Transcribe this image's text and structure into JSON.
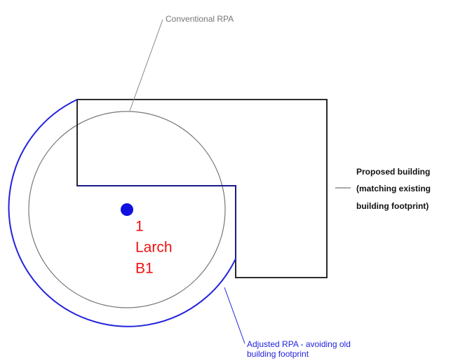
{
  "labels": {
    "conventional_rpa": "Conventional RPA",
    "proposed_building": [
      "Proposed building",
      "(matching existing",
      "building footprint)"
    ],
    "tree": [
      "1",
      "Larch",
      "B1"
    ],
    "adjusted_rpa": [
      "Adjusted RPA - avoiding old",
      "building footprint"
    ]
  }
}
